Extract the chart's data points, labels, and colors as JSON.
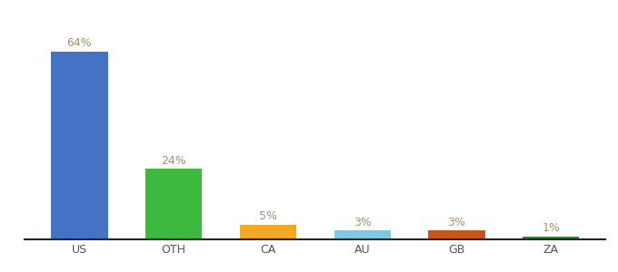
{
  "categories": [
    "US",
    "OTH",
    "CA",
    "AU",
    "GB",
    "ZA"
  ],
  "values": [
    64,
    24,
    5,
    3,
    3,
    1
  ],
  "bar_colors": [
    "#4472c4",
    "#3dba3d",
    "#f5a623",
    "#7ec8e3",
    "#c8541a",
    "#2d8a2d"
  ],
  "labels": [
    "64%",
    "24%",
    "5%",
    "3%",
    "3%",
    "1%"
  ],
  "label_fontsize": 9,
  "tick_fontsize": 9,
  "label_color": "#a09070",
  "background_color": "#ffffff",
  "ylim": [
    0,
    75
  ],
  "bar_width": 0.6
}
